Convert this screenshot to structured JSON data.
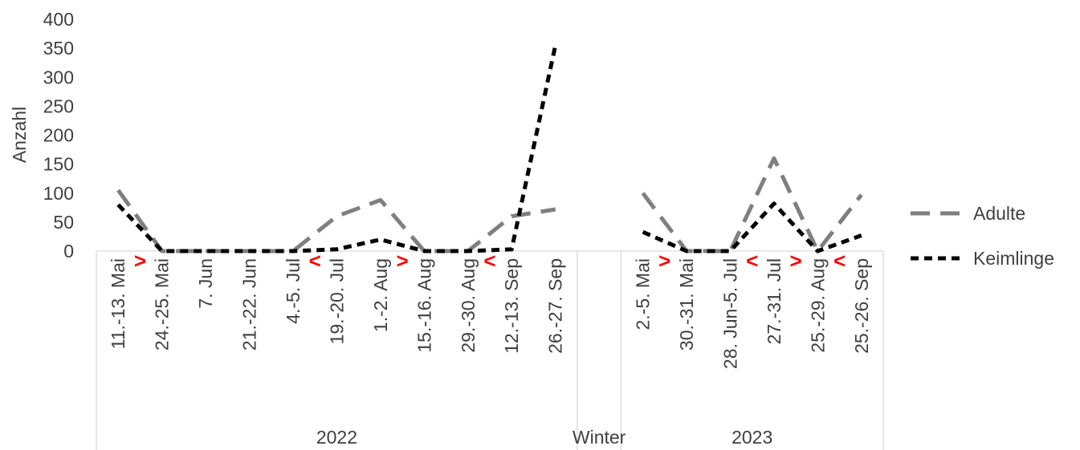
{
  "chart_data": {
    "type": "line",
    "ylabel": "Anzahl",
    "ylim": [
      0,
      400
    ],
    "yticks": [
      0,
      50,
      100,
      150,
      200,
      250,
      300,
      350,
      400
    ],
    "categories": [
      "11.-13. Mai",
      "24.-25. Mai",
      "7. Jun",
      "21.-22. Jun",
      "4.-5. Jul",
      "19.-20. Jul",
      "1.-2. Aug",
      "15.-16. Aug",
      "29.-30. Aug",
      "12.-13. Sep",
      "26.-27. Sep",
      "",
      "2.-5. Mai",
      "30.-31. Mai",
      "28. Jun-5. Jul",
      "27.-31. Jul",
      "25.-29. Aug",
      "25.-26. Sep"
    ],
    "groups": [
      {
        "label": "2022",
        "start": 0,
        "end": 10
      },
      {
        "label": "Winter",
        "start": 11,
        "end": 11
      },
      {
        "label": "2023",
        "start": 12,
        "end": 17
      }
    ],
    "series": [
      {
        "name": "Adulte",
        "color": "#7f7f7f",
        "dash": "long-dash",
        "values": [
          105,
          0,
          0,
          0,
          0,
          60,
          88,
          0,
          0,
          60,
          72,
          null,
          100,
          0,
          0,
          160,
          0,
          97
        ]
      },
      {
        "name": "Keimlinge",
        "color": "#000000",
        "dash": "short-dash",
        "values": [
          80,
          0,
          0,
          0,
          0,
          3,
          20,
          0,
          0,
          3,
          355,
          null,
          33,
          0,
          0,
          82,
          0,
          27
        ]
      }
    ],
    "annotations": [
      {
        "text": ">",
        "between": [
          0,
          1
        ],
        "color": "#ff0000"
      },
      {
        "text": "<",
        "between": [
          4,
          5
        ],
        "color": "#ff0000"
      },
      {
        "text": ">",
        "between": [
          6,
          7
        ],
        "color": "#ff0000"
      },
      {
        "text": "<",
        "between": [
          8,
          9
        ],
        "color": "#ff0000"
      },
      {
        "text": ">",
        "between": [
          12,
          13
        ],
        "color": "#ff0000"
      },
      {
        "text": "<",
        "between": [
          14,
          15
        ],
        "color": "#ff0000"
      },
      {
        "text": ">",
        "between": [
          15,
          16
        ],
        "color": "#ff0000"
      },
      {
        "text": "<",
        "between": [
          16,
          17
        ],
        "color": "#ff0000"
      }
    ],
    "legend_position": "right",
    "grid": false
  }
}
